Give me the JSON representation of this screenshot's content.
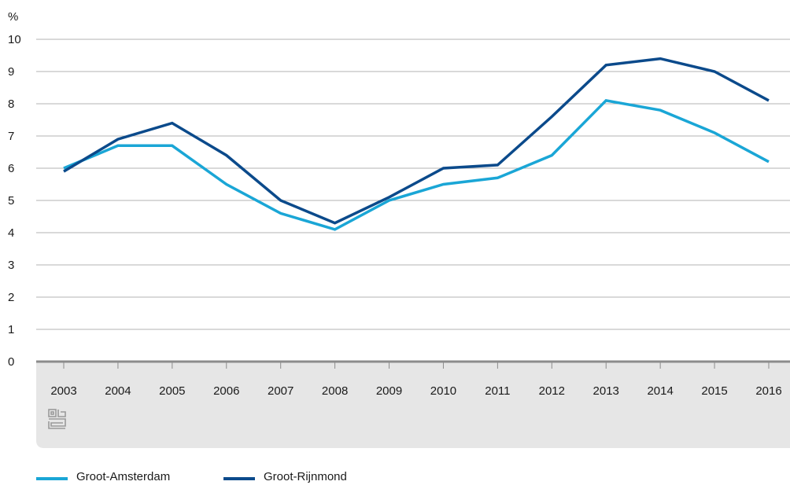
{
  "chart_data": {
    "type": "line",
    "ylabel": "%",
    "ylim": [
      0,
      10
    ],
    "yticks": [
      "0",
      "1",
      "2",
      "3",
      "4",
      "5",
      "6",
      "7",
      "8",
      "9",
      "10"
    ],
    "categories": [
      "2003",
      "2004",
      "2005",
      "2006",
      "2007",
      "2008",
      "2009",
      "2010",
      "2011",
      "2012",
      "2013",
      "2014",
      "2015",
      "2016"
    ],
    "series": [
      {
        "name": "Groot-Amsterdam",
        "color": "#1aa6d6",
        "values": [
          6.0,
          6.7,
          6.7,
          5.5,
          4.6,
          4.1,
          5.0,
          5.5,
          5.7,
          6.4,
          8.1,
          7.8,
          7.1,
          6.2
        ]
      },
      {
        "name": "Groot-Rijnmond",
        "color": "#0b4a8b",
        "values": [
          5.9,
          6.9,
          7.4,
          6.4,
          5.0,
          4.3,
          5.1,
          6.0,
          6.1,
          7.6,
          9.2,
          9.4,
          9.0,
          8.1
        ]
      }
    ],
    "grid": true,
    "legend_position": "bottom-left",
    "logo_icon": "cbs-logo-icon"
  }
}
